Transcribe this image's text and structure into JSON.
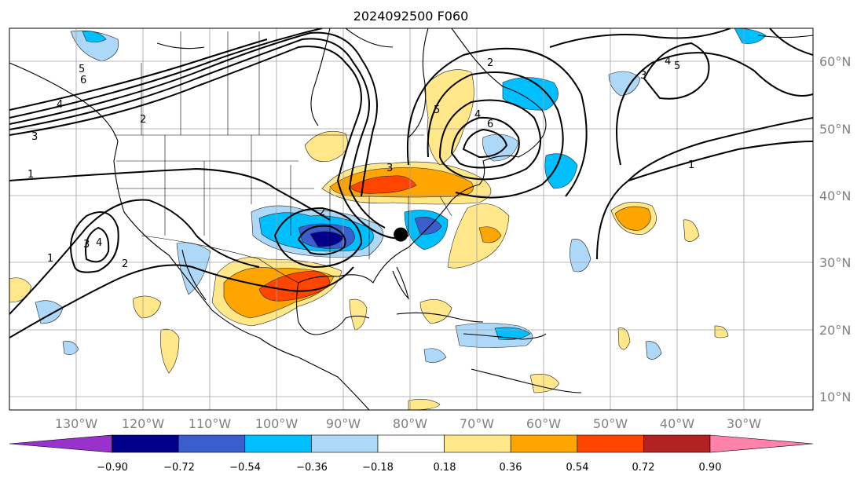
{
  "title": "2024092500 F060",
  "map": {
    "lon_range": [
      -140,
      -25
    ],
    "lat_range": [
      8,
      65
    ],
    "lon_labels": [
      "130°W",
      "120°W",
      "110°W",
      "100°W",
      "90°W",
      "80°W",
      "70°W",
      "60°W",
      "50°W",
      "40°W",
      "30°W"
    ],
    "lat_labels": [
      "60°N",
      "50°N",
      "40°N",
      "30°N",
      "20°N",
      "10°N"
    ],
    "contour_labels": [
      "6",
      "5",
      "4",
      "3",
      "2",
      "1",
      "3",
      "4",
      "2",
      "1",
      "2",
      "3",
      "4",
      "5",
      "6",
      "2",
      "3",
      "4",
      "5",
      "1"
    ],
    "storm_marker": {
      "lon": -84,
      "lat": 34.2
    }
  },
  "colorbar": {
    "ticks": [
      "−0.90",
      "−0.72",
      "−0.54",
      "−0.36",
      "−0.18",
      "0.18",
      "0.36",
      "0.54",
      "0.72",
      "0.90"
    ],
    "colors": [
      "#9932cc",
      "#00008b",
      "#3a5fcd",
      "#00bfff",
      "#add8f7",
      "#ffffff",
      "#ffe78a",
      "#ffa500",
      "#ff4500",
      "#b22222",
      "#ff82ab"
    ]
  }
}
